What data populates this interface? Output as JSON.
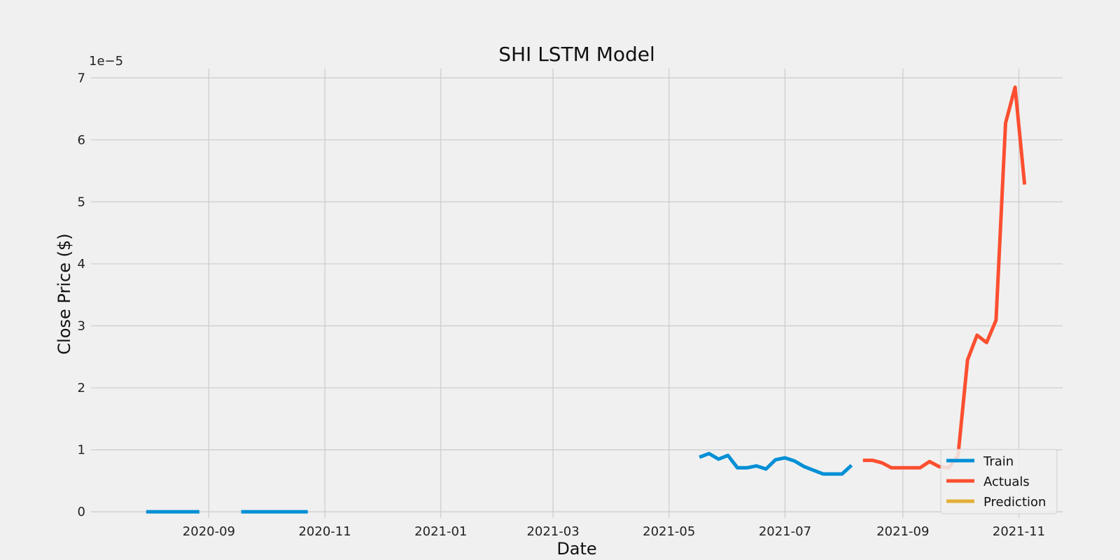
{
  "chart_data": {
    "type": "line",
    "title": "SHI LSTM Model",
    "xlabel": "Date",
    "ylabel": "Close Price ($)",
    "y_offset_label": "1e−5",
    "y_scale": 1e-05,
    "xlim": [
      "2020-07-01",
      "2021-11-24"
    ],
    "ylim": [
      -1e-06,
      7.15e-05
    ],
    "x_ticks": [
      "2020-09",
      "2020-11",
      "2021-01",
      "2021-03",
      "2021-05",
      "2021-07",
      "2021-09",
      "2021-11"
    ],
    "y_ticks": [
      0,
      1e-05,
      2e-05,
      3e-05,
      4e-05,
      5e-05,
      6e-05,
      7e-05
    ],
    "y_tick_labels": [
      "0",
      "1",
      "2",
      "3",
      "4",
      "5",
      "6",
      "7"
    ],
    "grid": true,
    "legend_position": "lower-right",
    "series": [
      {
        "name": "Train",
        "color": "#008fd5",
        "segments": [
          [
            [
              "2020-07-30",
              0
            ],
            [
              "2020-08-06",
              0
            ],
            [
              "2020-08-13",
              0
            ],
            [
              "2020-08-20",
              0
            ],
            [
              "2020-08-27",
              0
            ]
          ],
          [
            [
              "2020-09-18",
              0
            ],
            [
              "2020-09-25",
              0
            ],
            [
              "2020-10-02",
              0
            ],
            [
              "2020-10-09",
              0
            ],
            [
              "2020-10-16",
              0
            ],
            [
              "2020-10-23",
              0
            ]
          ],
          [
            [
              "2021-05-17",
              8.8e-06
            ],
            [
              "2021-05-22",
              9.4e-06
            ],
            [
              "2021-05-27",
              8.5e-06
            ],
            [
              "2021-06-01",
              9.1e-06
            ],
            [
              "2021-06-06",
              7.1e-06
            ],
            [
              "2021-06-11",
              7.1e-06
            ],
            [
              "2021-06-16",
              7.4e-06
            ],
            [
              "2021-06-21",
              6.9e-06
            ],
            [
              "2021-06-26",
              8.4e-06
            ],
            [
              "2021-07-01",
              8.7e-06
            ],
            [
              "2021-07-06",
              8.2e-06
            ],
            [
              "2021-07-11",
              7.3e-06
            ],
            [
              "2021-07-16",
              6.7e-06
            ],
            [
              "2021-07-21",
              6.1e-06
            ],
            [
              "2021-07-26",
              6.1e-06
            ],
            [
              "2021-07-31",
              6.1e-06
            ],
            [
              "2021-08-05",
              7.5e-06
            ]
          ]
        ]
      },
      {
        "name": "Actuals",
        "color": "#fc4f30",
        "segments": [
          [
            [
              "2021-08-11",
              8.3e-06
            ],
            [
              "2021-08-16",
              8.3e-06
            ],
            [
              "2021-08-21",
              7.9e-06
            ],
            [
              "2021-08-26",
              7.1e-06
            ],
            [
              "2021-08-31",
              7.1e-06
            ],
            [
              "2021-09-05",
              7.1e-06
            ],
            [
              "2021-09-10",
              7.1e-06
            ],
            [
              "2021-09-15",
              8.1e-06
            ],
            [
              "2021-09-20",
              7.3e-06
            ],
            [
              "2021-09-25",
              7.1e-06
            ],
            [
              "2021-09-30",
              9e-06
            ],
            [
              "2021-10-05",
              2.45e-05
            ],
            [
              "2021-10-10",
              2.85e-05
            ],
            [
              "2021-10-15",
              2.73e-05
            ],
            [
              "2021-10-20",
              3.09e-05
            ],
            [
              "2021-10-25",
              6.27e-05
            ],
            [
              "2021-10-30",
              6.85e-05
            ],
            [
              "2021-11-04",
              5.28e-05
            ]
          ]
        ]
      },
      {
        "name": "Prediction",
        "color": "#e5ae38",
        "segments": []
      }
    ]
  }
}
